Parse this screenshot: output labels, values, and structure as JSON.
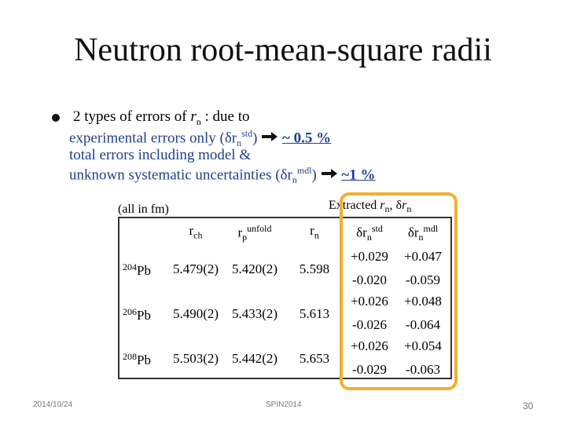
{
  "title": "Neutron root-mean-square radii",
  "bullet": {
    "line1": [
      "2 types of errors of ",
      "r",
      "n",
      " : due to"
    ],
    "line2": [
      "experimental errors only (δr",
      "n",
      "std",
      ") ",
      "~ 0.5 %"
    ],
    "line3": "total errors including model &",
    "line4": [
      "unknown systematic uncertainties (δr",
      "n",
      "mdl",
      ") ",
      "~1 %"
    ]
  },
  "units_note": "(all in fm)",
  "extracted_label": [
    "Extracted ",
    "r",
    "n",
    ", δ",
    "r",
    "n"
  ],
  "table": {
    "header": [
      [
        "r",
        "ch"
      ],
      [
        "r",
        "p",
        "unfold"
      ],
      [
        "r",
        "n"
      ],
      [
        "δr",
        "n",
        "std"
      ],
      [
        "δr",
        "n",
        "mdl"
      ]
    ],
    "rows": [
      {
        "mass": "204",
        "element": "Pb",
        "rch": "5.479(2)",
        "rp": "5.420(2)",
        "rn": "5.598",
        "std": [
          "+0.029",
          "-0.020"
        ],
        "mdl": [
          "+0.047",
          "-0.059"
        ]
      },
      {
        "mass": "206",
        "element": "Pb",
        "rch": "5.490(2)",
        "rp": "5.433(2)",
        "rn": "5.613",
        "std": [
          "+0.026",
          "-0.026"
        ],
        "mdl": [
          "+0.048",
          "-0.064"
        ]
      },
      {
        "mass": "208",
        "element": "Pb",
        "rch": "5.503(2)",
        "rp": "5.442(2)",
        "rn": "5.653",
        "std": [
          "+0.026",
          "-0.029"
        ],
        "mdl": [
          "+0.054",
          "-0.063"
        ]
      }
    ]
  },
  "footer": {
    "date": "2014/10/24",
    "event": "SPIN2014",
    "page": "30"
  }
}
